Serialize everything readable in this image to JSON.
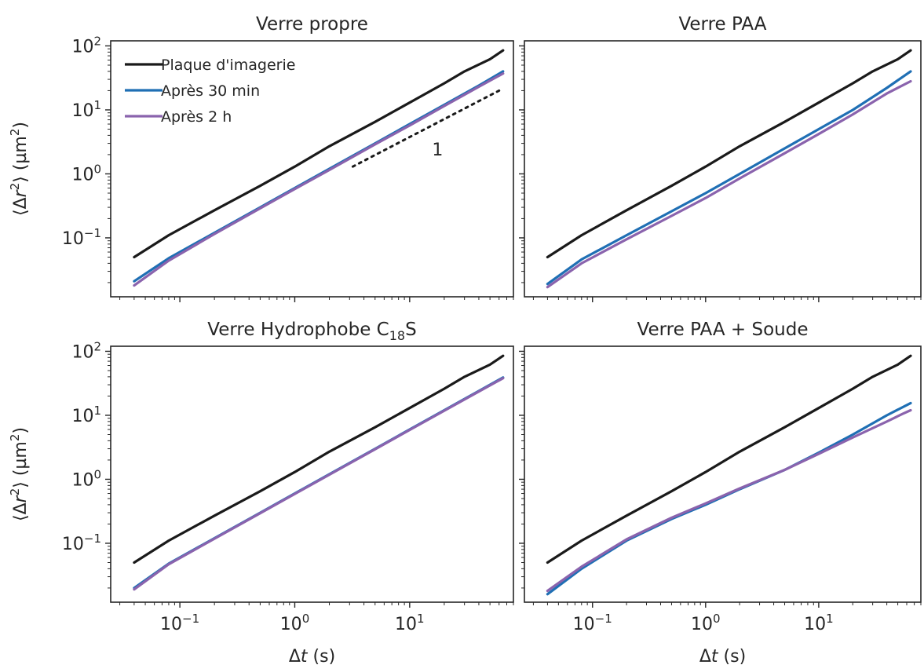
{
  "chart_data": {
    "type": "line",
    "x_scale": "log",
    "y_scale": "log",
    "xlim": [
      0.025,
      80
    ],
    "ylim": [
      0.012,
      120
    ],
    "xlabel": "Δt (s)",
    "ylabel": "⟨Δr²⟩ (µm²)",
    "x_tick_labels": [
      "10⁻¹",
      "10⁰",
      "10¹"
    ],
    "y_tick_labels": [
      "10⁻¹",
      "10⁰",
      "10¹",
      "10²"
    ],
    "legend": {
      "position": "top-left",
      "entries": [
        "Plaque d'imagerie",
        "Après 30 min",
        "Après 2 h"
      ]
    },
    "colors": {
      "Plaque d'imagerie": "#1a1a1a",
      "Après 30 min": "#1f6fb4",
      "Après 2 h": "#8a63ad"
    },
    "guide_line": {
      "panel": 0,
      "slope": 1,
      "label": "1",
      "x": [
        3.2,
        60
      ],
      "y": [
        1.3,
        20
      ],
      "style": "dotted"
    },
    "panels": [
      {
        "title": "Verre propre",
        "series": [
          {
            "name": "Plaque d'imagerie",
            "x": [
              0.04,
              0.08,
              0.2,
              0.5,
              1,
              2,
              5,
              10,
              20,
              30,
              50,
              65
            ],
            "y": [
              0.05,
              0.11,
              0.27,
              0.65,
              1.3,
              2.7,
              6.5,
              13,
              26,
              40,
              62,
              85
            ]
          },
          {
            "name": "Après 30 min",
            "x": [
              0.04,
              0.08,
              0.2,
              0.5,
              1,
              2,
              5,
              10,
              20,
              40,
              65
            ],
            "y": [
              0.021,
              0.048,
              0.12,
              0.3,
              0.6,
              1.2,
              3,
              6,
              12,
              24,
              40
            ]
          },
          {
            "name": "Après 2 h",
            "x": [
              0.04,
              0.08,
              0.2,
              0.5,
              1,
              2,
              5,
              10,
              20,
              40,
              65
            ],
            "y": [
              0.018,
              0.044,
              0.115,
              0.29,
              0.58,
              1.15,
              2.9,
              5.7,
              11.5,
              23,
              37
            ]
          }
        ]
      },
      {
        "title": "Verre PAA",
        "series": [
          {
            "name": "Plaque d'imagerie",
            "x": [
              0.04,
              0.08,
              0.2,
              0.5,
              1,
              2,
              5,
              10,
              20,
              30,
              50,
              65
            ],
            "y": [
              0.05,
              0.11,
              0.27,
              0.65,
              1.3,
              2.7,
              6.5,
              13,
              26,
              40,
              62,
              85
            ]
          },
          {
            "name": "Après 30 min",
            "x": [
              0.04,
              0.08,
              0.2,
              0.5,
              1,
              2,
              5,
              10,
              20,
              40,
              65
            ],
            "y": [
              0.019,
              0.046,
              0.11,
              0.26,
              0.5,
              1.0,
              2.5,
              5,
              10,
              22,
              40
            ]
          },
          {
            "name": "Après 2 h",
            "x": [
              0.04,
              0.08,
              0.2,
              0.5,
              1,
              2,
              5,
              10,
              20,
              40,
              65
            ],
            "y": [
              0.017,
              0.04,
              0.095,
              0.22,
              0.42,
              0.85,
              2.1,
              4.2,
              8.5,
              18,
              28
            ]
          }
        ]
      },
      {
        "title": "Verre Hydrophobe C₁₈S",
        "series": [
          {
            "name": "Plaque d'imagerie",
            "x": [
              0.04,
              0.08,
              0.2,
              0.5,
              1,
              2,
              5,
              10,
              20,
              30,
              50,
              65
            ],
            "y": [
              0.05,
              0.11,
              0.27,
              0.65,
              1.3,
              2.7,
              6.5,
              13,
              26,
              40,
              62,
              85
            ]
          },
          {
            "name": "Après 30 min",
            "x": [
              0.04,
              0.08,
              0.2,
              0.5,
              1,
              2,
              5,
              10,
              20,
              40,
              65
            ],
            "y": [
              0.02,
              0.048,
              0.12,
              0.3,
              0.6,
              1.2,
              3,
              6,
              12,
              24,
              39
            ]
          },
          {
            "name": "Après 2 h",
            "x": [
              0.04,
              0.08,
              0.2,
              0.5,
              1,
              2,
              5,
              10,
              20,
              40,
              65
            ],
            "y": [
              0.019,
              0.047,
              0.118,
              0.295,
              0.59,
              1.18,
              2.95,
              5.9,
              11.8,
              23.5,
              38
            ]
          }
        ]
      },
      {
        "title": "Verre PAA + Soude",
        "series": [
          {
            "name": "Plaque d'imagerie",
            "x": [
              0.04,
              0.08,
              0.2,
              0.5,
              1,
              2,
              5,
              10,
              20,
              30,
              50,
              65
            ],
            "y": [
              0.05,
              0.11,
              0.27,
              0.65,
              1.3,
              2.7,
              6.5,
              13,
              26,
              40,
              62,
              85
            ]
          },
          {
            "name": "Après 30 min",
            "x": [
              0.04,
              0.08,
              0.2,
              0.5,
              1,
              2,
              5,
              10,
              20,
              40,
              65
            ],
            "y": [
              0.016,
              0.04,
              0.11,
              0.24,
              0.4,
              0.7,
              1.4,
              2.6,
              5,
              10,
              15.5
            ]
          },
          {
            "name": "Après 2 h",
            "x": [
              0.04,
              0.08,
              0.2,
              0.5,
              1,
              2,
              5,
              10,
              20,
              40,
              55,
              65
            ],
            "y": [
              0.018,
              0.043,
              0.115,
              0.25,
              0.42,
              0.72,
              1.4,
              2.5,
              4.5,
              8,
              10.5,
              12
            ]
          }
        ]
      }
    ]
  }
}
